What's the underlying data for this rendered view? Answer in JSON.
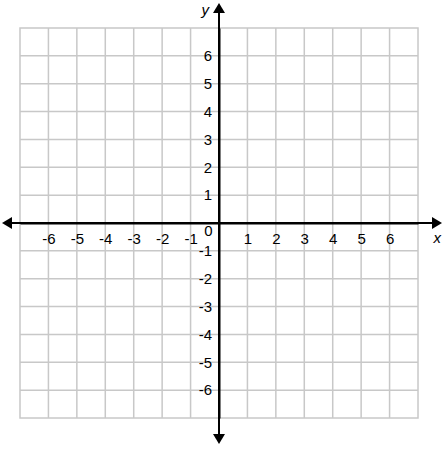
{
  "chart_data": {
    "type": "coordinate_plane",
    "x_label": "x",
    "y_label": "y",
    "xlim": [
      -7,
      7
    ],
    "ylim": [
      -7,
      7
    ],
    "xticks": [
      -6,
      -5,
      -4,
      -3,
      -2,
      -1,
      0,
      1,
      2,
      3,
      4,
      5,
      6
    ],
    "yticks": [
      -6,
      -5,
      -4,
      -3,
      -2,
      -1,
      1,
      2,
      3,
      4,
      5,
      6
    ],
    "grid": true
  }
}
